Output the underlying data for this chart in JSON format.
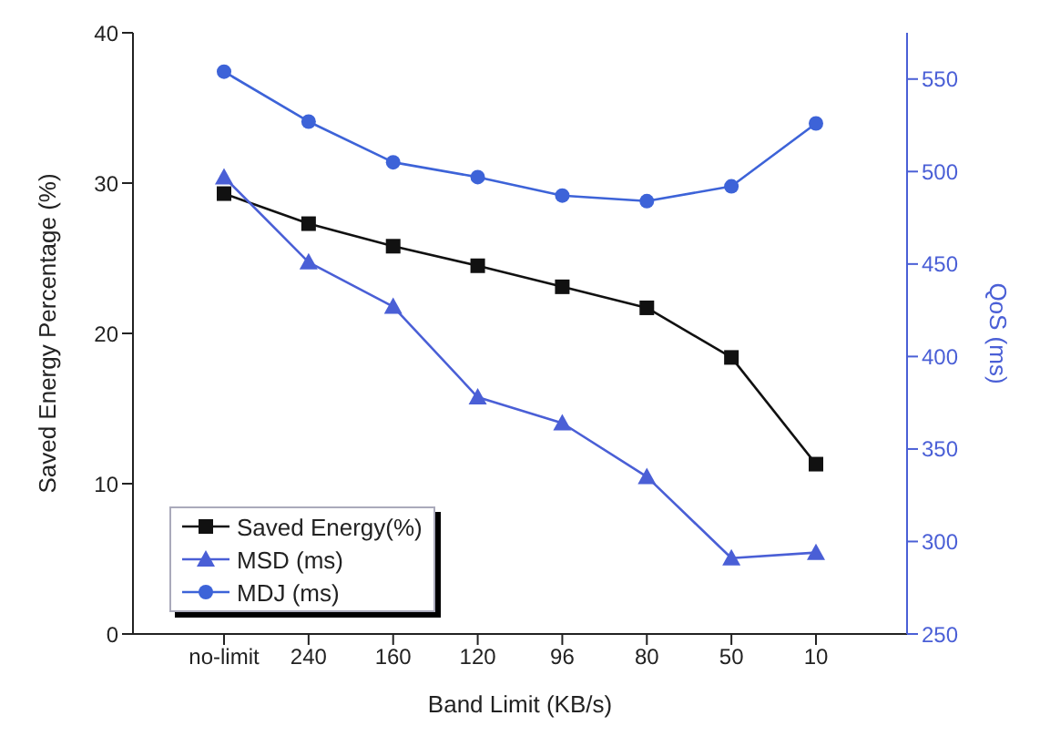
{
  "chart_data": {
    "type": "line",
    "xlabel": "Band Limit (KB/s)",
    "ylabel": "Saved Energy Percentage (%)",
    "y2label": "QoS (ms)",
    "categories": [
      "no-limit",
      "240",
      "160",
      "120",
      "96",
      "80",
      "50",
      "10"
    ],
    "series": [
      {
        "name": "Saved Energy(%)",
        "color": "#111111",
        "marker": "square",
        "values": [
          29.3,
          27.3,
          25.8,
          24.5,
          23.1,
          21.7,
          18.4,
          11.3
        ]
      },
      {
        "name": "MSD (ms)",
        "color": "#4a5fd6",
        "marker": "triangle",
        "axis": "y2",
        "values": [
          497,
          451,
          427,
          378,
          364,
          335,
          291,
          294
        ]
      },
      {
        "name": "MDJ (ms)",
        "color": "#3d63d8",
        "marker": "circle",
        "axis": "y2",
        "values": [
          554,
          527,
          505,
          497,
          487,
          484,
          492,
          526
        ]
      }
    ],
    "ylim": [
      0,
      40
    ],
    "yticks": [
      0,
      10,
      20,
      30,
      40
    ],
    "y2lim": [
      250,
      575
    ],
    "y2ticks": [
      250,
      300,
      350,
      400,
      450,
      500,
      550
    ],
    "legend": "bottom left",
    "grid": false
  }
}
